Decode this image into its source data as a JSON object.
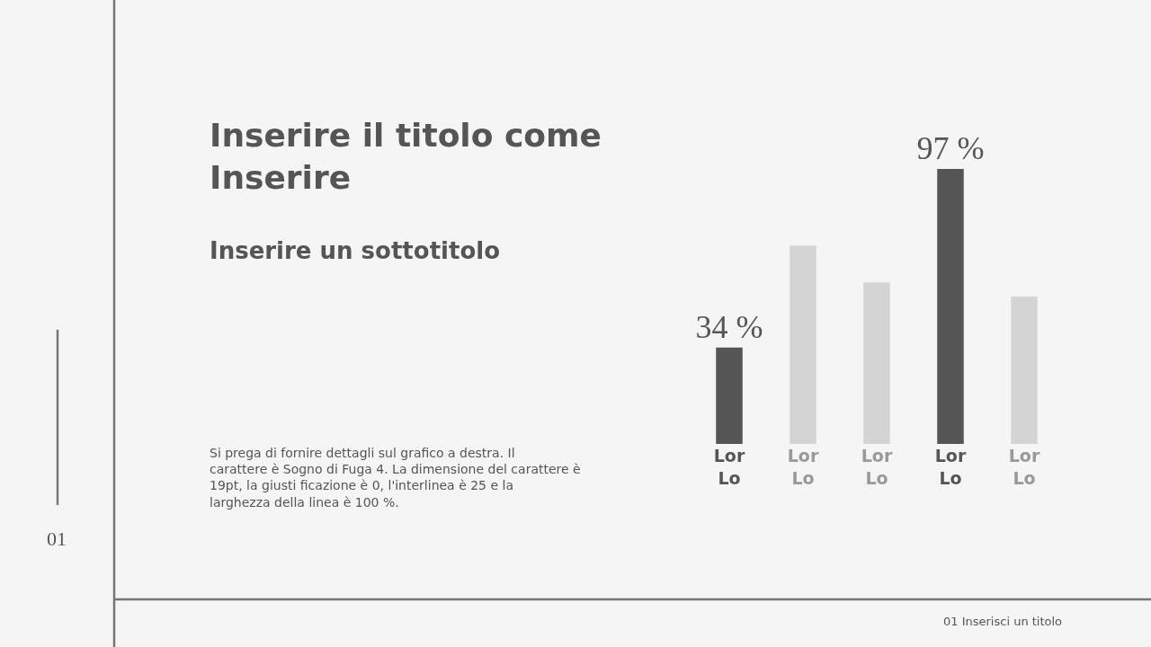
{
  "chart_data": {
    "type": "bar",
    "title": "Inserire il titolo come Inserire",
    "subtitle": "Inserire un sottotitolo",
    "categories": [
      "Lor Lo",
      "Lor Lo",
      "Lor Lo",
      "Lor Lo",
      "Lor Lo"
    ],
    "values": [
      34,
      70,
      57,
      97,
      52
    ],
    "colors": [
      "#555555",
      "#d4d4d4",
      "#d4d4d4",
      "#555555",
      "#d4d4d4"
    ],
    "value_labels": [
      "34 %",
      null,
      null,
      "97 %",
      null
    ],
    "annotations": [
      "Si prega di fornire dettagli sul grafico a destra. Il carattere è Sogno di Fuga 4. La dimensione del carattere è 19pt, la giusti ficazione è 0, l'interlinea è 25 e la larghezza della linea è 100 %.",
      "01",
      "01 Inserisci un titolo"
    ],
    "legend": false
  }
}
